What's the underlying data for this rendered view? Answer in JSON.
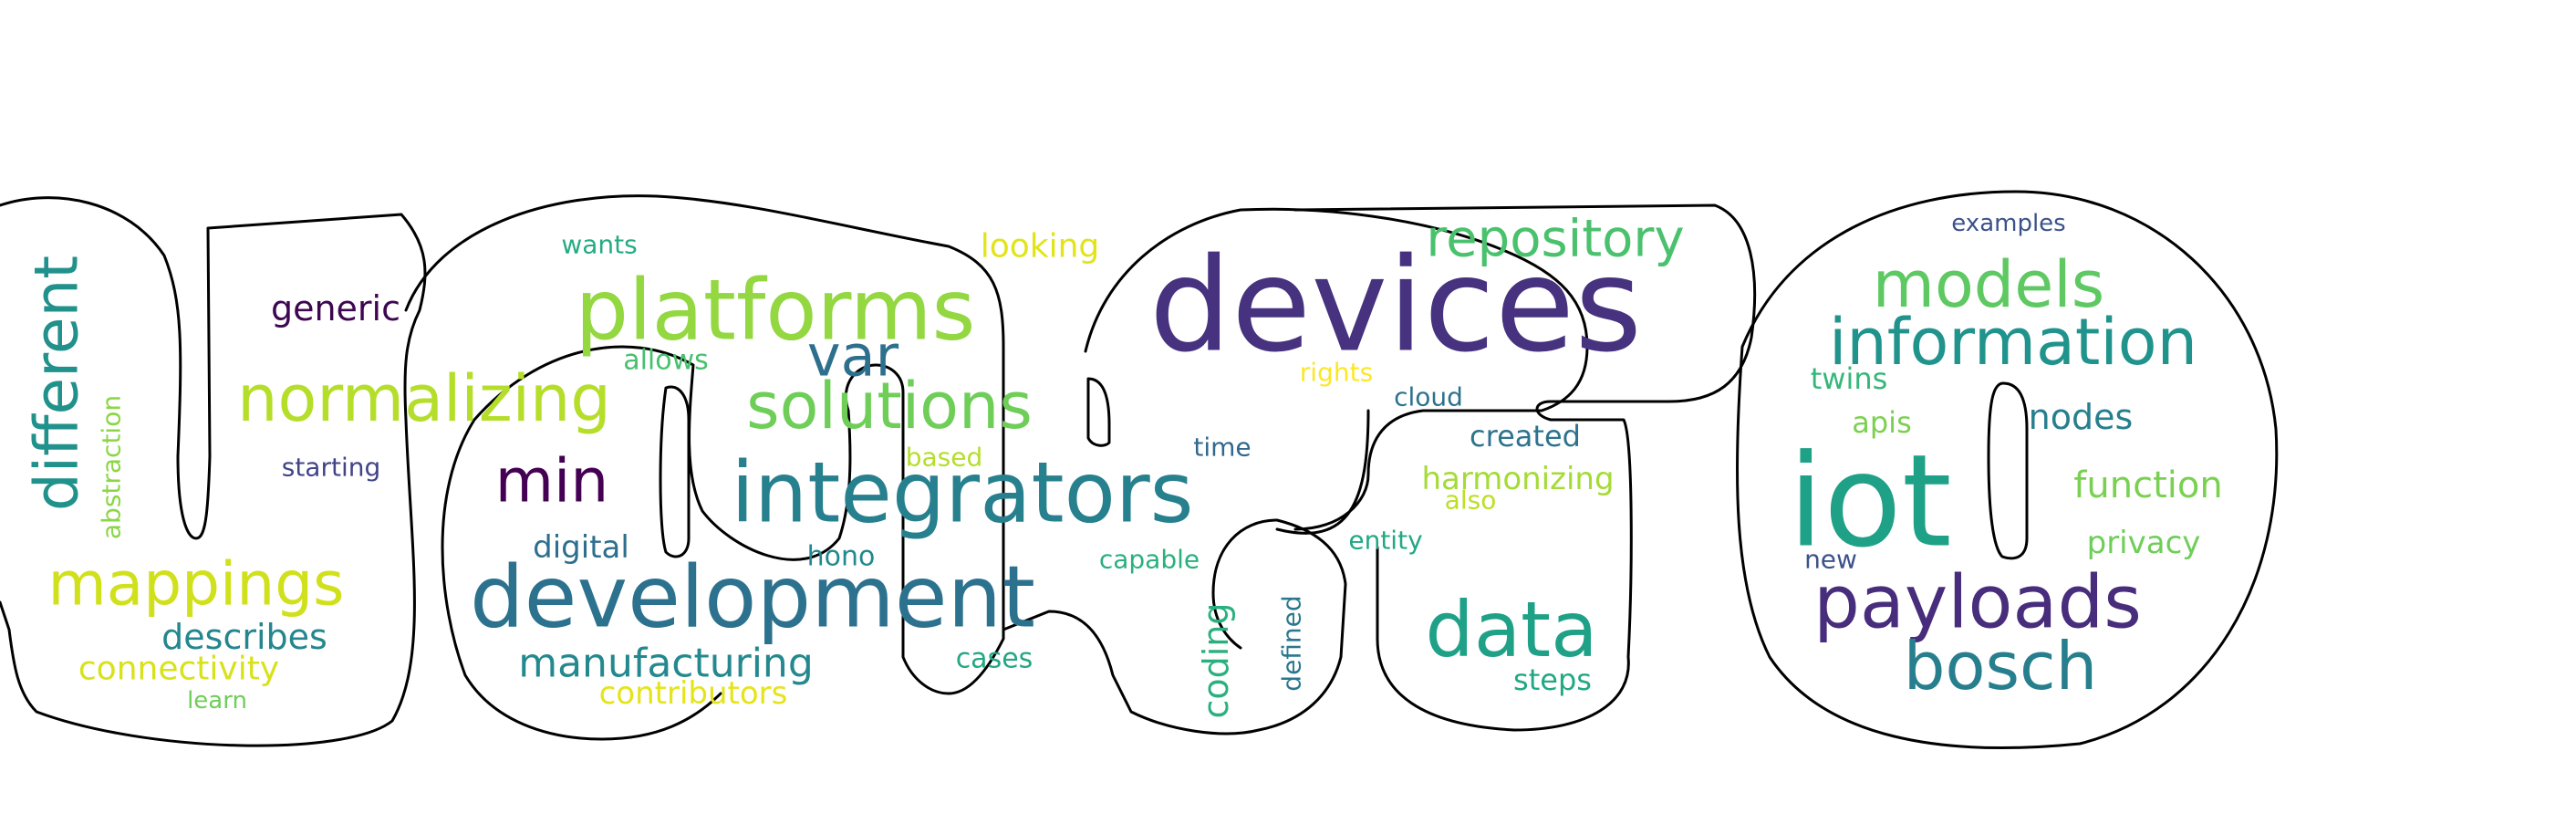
{
  "words": [
    {
      "text": "devices",
      "color": "#46327e"
    },
    {
      "text": "iot",
      "color": "#1fa187"
    },
    {
      "text": "development",
      "color": "#2c728e"
    },
    {
      "text": "integrators",
      "color": "#27808e"
    },
    {
      "text": "platforms",
      "color": "#93d741"
    },
    {
      "text": "payloads",
      "color": "#472d7b"
    },
    {
      "text": "data",
      "color": "#1fa187"
    },
    {
      "text": "information",
      "color": "#20938c"
    },
    {
      "text": "normalizing",
      "color": "#b5de2b"
    },
    {
      "text": "solutions",
      "color": "#6ece58"
    },
    {
      "text": "bosch",
      "color": "#277f8e"
    },
    {
      "text": "models",
      "color": "#5ec962"
    },
    {
      "text": "mappings",
      "color": "#d0e11c"
    },
    {
      "text": "repository",
      "color": "#4ac16d"
    },
    {
      "text": "different",
      "color": "#21918c"
    },
    {
      "text": "min",
      "color": "#440154"
    },
    {
      "text": "var",
      "color": "#2d708e"
    },
    {
      "text": "manufacturing",
      "color": "#23898e"
    },
    {
      "text": "function",
      "color": "#7ad151"
    },
    {
      "text": "coding",
      "color": "#2ab07f"
    },
    {
      "text": "generic",
      "color": "#3e0751"
    },
    {
      "text": "describes",
      "color": "#24868e"
    },
    {
      "text": "connectivity",
      "color": "#d8e219"
    },
    {
      "text": "nodes",
      "color": "#277f8e"
    },
    {
      "text": "privacy",
      "color": "#6ece58"
    },
    {
      "text": "contributors",
      "color": "#e5e419"
    },
    {
      "text": "digital",
      "color": "#2e6e8e"
    },
    {
      "text": "harmonizing",
      "color": "#a5db36"
    },
    {
      "text": "looking",
      "color": "#e2e418"
    },
    {
      "text": "twins",
      "color": "#35b779"
    },
    {
      "text": "created",
      "color": "#2c738e"
    },
    {
      "text": "steps",
      "color": "#22a884"
    },
    {
      "text": "apis",
      "color": "#7ad151"
    },
    {
      "text": "hono",
      "color": "#23898e"
    },
    {
      "text": "cases",
      "color": "#22a884"
    },
    {
      "text": "entity",
      "color": "#22a884"
    },
    {
      "text": "allows",
      "color": "#48c16e"
    },
    {
      "text": "wants",
      "color": "#25ab82"
    },
    {
      "text": "capable",
      "color": "#2ab07f"
    },
    {
      "text": "defined",
      "color": "#2a788e"
    },
    {
      "text": "abstraction",
      "color": "#8bd646"
    },
    {
      "text": "starting",
      "color": "#414487"
    },
    {
      "text": "based",
      "color": "#b5de2b"
    },
    {
      "text": "time",
      "color": "#31688e"
    },
    {
      "text": "cloud",
      "color": "#2c728e"
    },
    {
      "text": "rights",
      "color": "#fde725"
    },
    {
      "text": "also",
      "color": "#bddf26"
    },
    {
      "text": "new",
      "color": "#3b528b"
    },
    {
      "text": "learn",
      "color": "#6ece58"
    },
    {
      "text": "examples",
      "color": "#3b528b"
    }
  ]
}
